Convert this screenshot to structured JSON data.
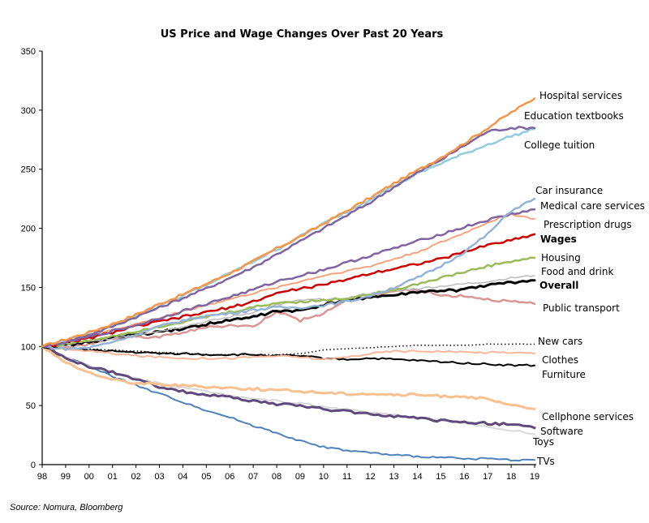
{
  "chart_data": {
    "type": "line",
    "title": "US Price and Wage Changes Over Past 20 Years",
    "xlabel": "",
    "ylabel": "",
    "ylim": [
      0,
      350
    ],
    "yticks": [
      0,
      50,
      100,
      150,
      200,
      250,
      300,
      350
    ],
    "xlim": [
      1998,
      2019
    ],
    "xtick_labels": [
      "98",
      "99",
      "00",
      "01",
      "02",
      "03",
      "04",
      "05",
      "06",
      "07",
      "08",
      "09",
      "10",
      "11",
      "12",
      "13",
      "14",
      "15",
      "16",
      "17",
      "18",
      "19"
    ],
    "grid": false,
    "legend": "inline labels at right end of lines",
    "source": "Source:  Nomura, Bloomberg",
    "x": [
      1998,
      1999,
      2000,
      2001,
      2002,
      2003,
      2004,
      2005,
      2006,
      2007,
      2008,
      2009,
      2010,
      2011,
      2012,
      2013,
      2014,
      2015,
      2016,
      2017,
      2018,
      2019
    ],
    "series": [
      {
        "name": "Hospital services",
        "color": "#f79646",
        "width": 2.5,
        "bold": false,
        "values": [
          100,
          106,
          112,
          119,
          127,
          136,
          144,
          153,
          162,
          172,
          183,
          193,
          204,
          215,
          226,
          238,
          249,
          260,
          272,
          285,
          298,
          310
        ]
      },
      {
        "name": "Education textbooks",
        "color": "#8064a2",
        "width": 2.5,
        "bold": false,
        "values": [
          100,
          104,
          110,
          117,
          125,
          133,
          141,
          149,
          158,
          167,
          178,
          189,
          200,
          211,
          222,
          235,
          247,
          258,
          270,
          282,
          285,
          285
        ]
      },
      {
        "name": "College tuition",
        "color": "#93cddd",
        "width": 2.5,
        "bold": false,
        "values": [
          100,
          105,
          111,
          118,
          126,
          134,
          143,
          152,
          162,
          172,
          182,
          193,
          204,
          214,
          225,
          236,
          246,
          255,
          263,
          271,
          278,
          284
        ]
      },
      {
        "name": "Car insurance",
        "color": "#95b3d7",
        "width": 2.5,
        "bold": false,
        "values": [
          100,
          98,
          99,
          104,
          110,
          117,
          122,
          126,
          128,
          131,
          133,
          133,
          135,
          138,
          143,
          150,
          158,
          168,
          180,
          195,
          215,
          225
        ]
      },
      {
        "name": "Medical care services",
        "color": "#8064a2",
        "width": 2.5,
        "bold": false,
        "values": [
          100,
          104,
          108,
          113,
          118,
          124,
          130,
          136,
          142,
          148,
          155,
          160,
          165,
          171,
          177,
          183,
          189,
          195,
          201,
          207,
          212,
          216
        ]
      },
      {
        "name": "Prescription drugs",
        "color": "#fa9b70",
        "width": 1.8,
        "bold": false,
        "values": [
          100,
          104,
          109,
          114,
          119,
          124,
          130,
          135,
          140,
          145,
          150,
          155,
          160,
          164,
          168,
          174,
          180,
          188,
          196,
          205,
          212,
          208
        ]
      },
      {
        "name": "Wages",
        "color": "#cc0000",
        "width": 2.5,
        "bold": true,
        "values": [
          100,
          103,
          107,
          112,
          117,
          121,
          125,
          129,
          133,
          138,
          145,
          149,
          152,
          157,
          162,
          166,
          170,
          174,
          180,
          186,
          190,
          195
        ]
      },
      {
        "name": "Housing",
        "color": "#9bbb59",
        "width": 2.5,
        "bold": false,
        "values": [
          100,
          102,
          105,
          109,
          113,
          117,
          121,
          125,
          129,
          133,
          137,
          138,
          139,
          141,
          144,
          148,
          153,
          158,
          163,
          168,
          172,
          175
        ]
      },
      {
        "name": "Food and drink",
        "color": "#bbbbbb",
        "width": 1.5,
        "bold": false,
        "values": [
          100,
          102,
          104,
          107,
          110,
          113,
          117,
          121,
          125,
          129,
          135,
          139,
          140,
          141,
          145,
          147,
          149,
          151,
          153,
          155,
          158,
          160
        ]
      },
      {
        "name": "Overall",
        "color": "#000000",
        "width": 3,
        "bold": true,
        "values": [
          100,
          101,
          104,
          107,
          110,
          112,
          115,
          119,
          122,
          125,
          130,
          130,
          135,
          139,
          142,
          143,
          146,
          147,
          148,
          152,
          154,
          156
        ]
      },
      {
        "name": "Public transport",
        "color": "#d99694",
        "width": 2.5,
        "bold": false,
        "values": [
          100,
          99,
          102,
          107,
          108,
          108,
          112,
          116,
          118,
          117,
          130,
          122,
          128,
          140,
          143,
          147,
          148,
          143,
          143,
          140,
          138,
          136
        ]
      },
      {
        "name": "New cars",
        "color": "#000000",
        "width": 1.5,
        "bold": false,
        "dotted": true,
        "values": [
          100,
          99,
          98,
          97,
          96,
          95,
          94,
          93,
          93,
          93,
          93,
          94,
          97,
          98,
          99,
          100,
          101,
          101,
          101,
          102,
          102,
          102
        ]
      },
      {
        "name": "Clothes",
        "color": "#fbb69a",
        "width": 2,
        "bold": false,
        "values": [
          100,
          98,
          96,
          94,
          92,
          91,
          90,
          90,
          90,
          91,
          92,
          91,
          89,
          91,
          94,
          96,
          96,
          96,
          95,
          95,
          95,
          94
        ]
      },
      {
        "name": "Furniture",
        "color": "#000000",
        "width": 2,
        "bold": false,
        "values": [
          100,
          99,
          97,
          96,
          95,
          94,
          94,
          93,
          93,
          93,
          92,
          92,
          90,
          89,
          90,
          89,
          88,
          87,
          86,
          85,
          84,
          84
        ]
      },
      {
        "name": "Cellphone services",
        "color": "#fac090",
        "width": 3,
        "bold": false,
        "values": [
          100,
          86,
          78,
          72,
          69,
          68,
          67,
          66,
          65,
          64,
          63,
          62,
          61,
          60,
          60,
          59,
          59,
          58,
          58,
          55,
          50,
          47
        ]
      },
      {
        "name": "Software",
        "color": "#604a7b",
        "width": 3,
        "bold": false,
        "values": [
          100,
          90,
          83,
          78,
          72,
          66,
          62,
          59,
          57,
          54,
          51,
          50,
          47,
          45,
          43,
          41,
          39,
          37,
          36,
          35,
          34,
          31
        ]
      },
      {
        "name": "Toys",
        "color": "#d9d9d9",
        "width": 2,
        "bold": false,
        "values": [
          100,
          91,
          84,
          78,
          73,
          69,
          65,
          62,
          59,
          56,
          54,
          52,
          49,
          47,
          44,
          42,
          40,
          38,
          35,
          32,
          29,
          26
        ]
      },
      {
        "name": "TVs",
        "color": "#4f81bd",
        "width": 2,
        "bold": false,
        "values": [
          100,
          91,
          83,
          75,
          67,
          60,
          53,
          46,
          40,
          33,
          27,
          20,
          15,
          12,
          10,
          8,
          7,
          6,
          5,
          5,
          4,
          4
        ]
      }
    ]
  },
  "source_note": "Source:  Nomura, Bloomberg"
}
